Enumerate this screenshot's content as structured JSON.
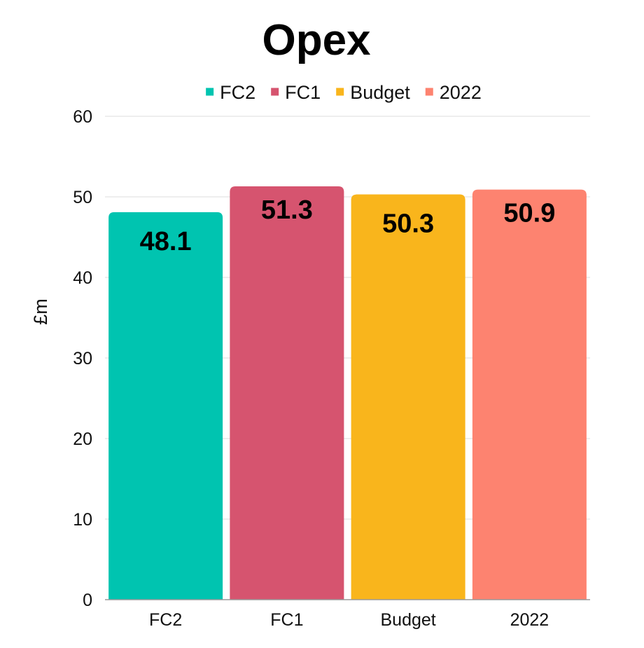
{
  "chart_data": {
    "type": "bar",
    "title": "Opex",
    "xlabel": "",
    "ylabel": "£m",
    "categories": [
      "FC2",
      "FC1",
      "Budget",
      "2022"
    ],
    "values": [
      48.1,
      51.3,
      50.3,
      50.9
    ],
    "data_labels": [
      "48.1",
      "51.3",
      "50.3",
      "50.9"
    ],
    "colors": [
      "#00c4b0",
      "#d6546f",
      "#f9b51c",
      "#fd8370"
    ],
    "legend": {
      "placement": "top-center",
      "entries": [
        "FC2",
        "FC1",
        "Budget",
        "2022"
      ]
    },
    "ylim": [
      0,
      60
    ],
    "yticks": [
      0,
      10,
      20,
      30,
      40,
      50,
      60
    ],
    "ytick_labels": [
      "0",
      "10",
      "20",
      "30",
      "40",
      "50",
      "60"
    ],
    "grid": true
  }
}
